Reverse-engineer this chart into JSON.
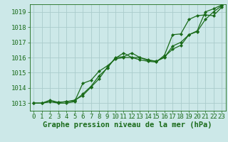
{
  "background_color": "#cce8e8",
  "grid_color": "#aacccc",
  "line_color": "#1a6b1a",
  "marker_color": "#1a6b1a",
  "xlabel": "Graphe pression niveau de la mer (hPa)",
  "xlabel_color": "#1a6b1a",
  "xlabel_fontsize": 7.5,
  "tick_color": "#1a6b1a",
  "tick_fontsize": 6.5,
  "ylim": [
    1012.5,
    1019.5
  ],
  "xlim": [
    -0.5,
    23.5
  ],
  "yticks": [
    1013,
    1014,
    1015,
    1016,
    1017,
    1018,
    1019
  ],
  "xticks": [
    0,
    1,
    2,
    3,
    4,
    5,
    6,
    7,
    8,
    9,
    10,
    11,
    12,
    13,
    14,
    15,
    16,
    17,
    18,
    19,
    20,
    21,
    22,
    23
  ],
  "series1_x": [
    0,
    1,
    2,
    3,
    4,
    5,
    6,
    7,
    8,
    9,
    10,
    11,
    12,
    13,
    14,
    15,
    16,
    17,
    18,
    19,
    20,
    21,
    22,
    23
  ],
  "series1_y": [
    1013.0,
    1013.0,
    1013.1,
    1013.05,
    1013.1,
    1013.15,
    1013.6,
    1014.1,
    1014.8,
    1015.3,
    1016.0,
    1016.05,
    1016.3,
    1016.0,
    1015.8,
    1015.75,
    1016.0,
    1016.75,
    1017.0,
    1017.5,
    1017.75,
    1019.0,
    1019.2,
    1019.45
  ],
  "series2_x": [
    0,
    1,
    2,
    3,
    4,
    5,
    6,
    7,
    8,
    9,
    10,
    11,
    12,
    13,
    14,
    15,
    16,
    17,
    18,
    19,
    20,
    21,
    22,
    23
  ],
  "series2_y": [
    1013.0,
    1013.0,
    1013.1,
    1013.0,
    1013.0,
    1013.1,
    1014.3,
    1014.5,
    1015.1,
    1015.45,
    1015.9,
    1016.0,
    1016.0,
    1016.0,
    1015.85,
    1015.75,
    1016.05,
    1016.55,
    1016.8,
    1017.5,
    1017.7,
    1018.5,
    1019.0,
    1019.4
  ],
  "series3_x": [
    0,
    1,
    2,
    3,
    4,
    5,
    6,
    7,
    8,
    9,
    10,
    11,
    12,
    13,
    14,
    15,
    16,
    17,
    18,
    19,
    20,
    21,
    22,
    23
  ],
  "series3_y": [
    1013.0,
    1013.0,
    1013.2,
    1013.05,
    1013.1,
    1013.2,
    1013.5,
    1014.05,
    1014.6,
    1015.35,
    1015.95,
    1016.3,
    1016.0,
    1015.85,
    1015.75,
    1015.7,
    1016.15,
    1017.5,
    1017.55,
    1018.5,
    1018.75,
    1018.8,
    1018.75,
    1019.3
  ]
}
